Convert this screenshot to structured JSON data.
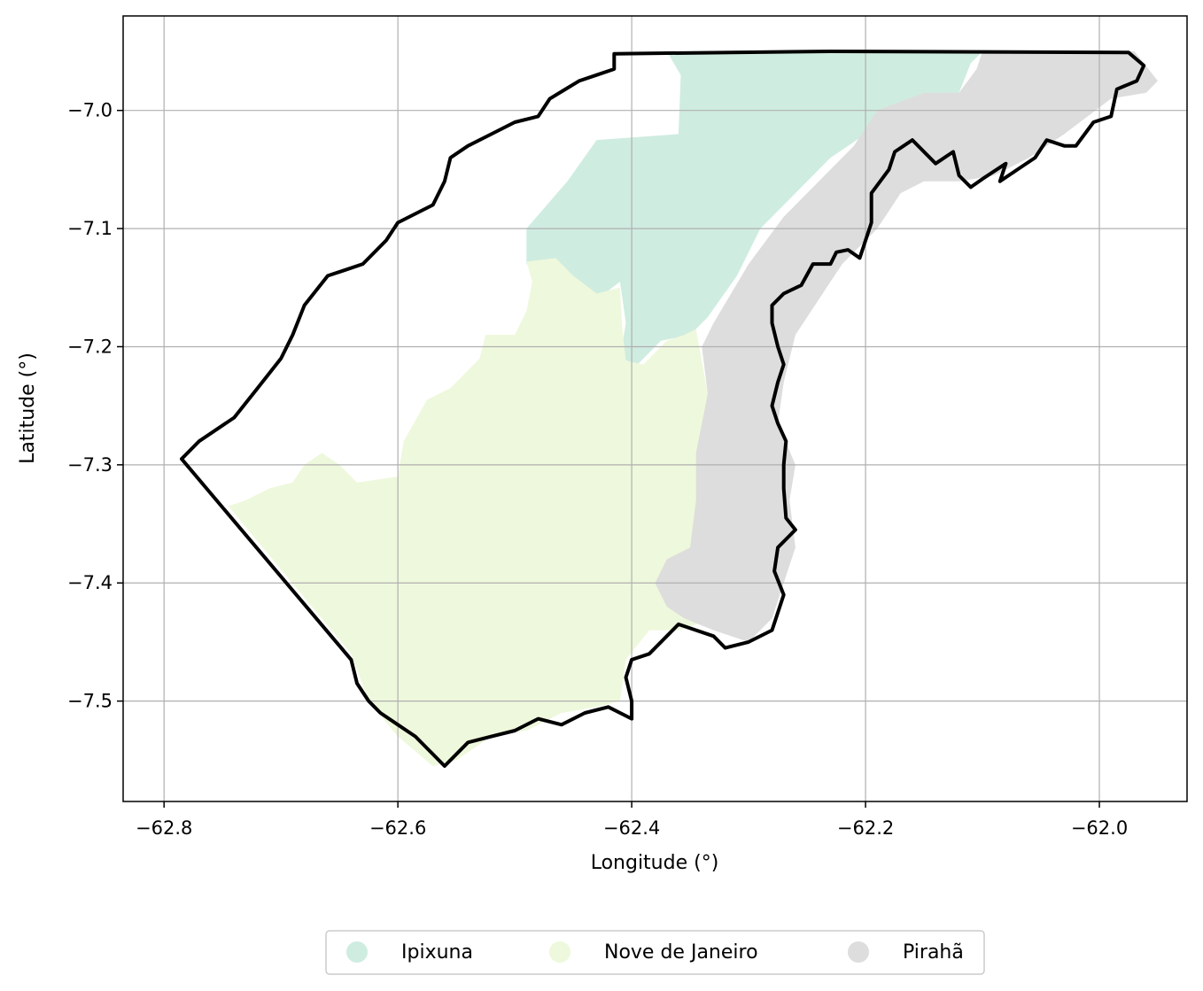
{
  "chart_data": {
    "type": "map",
    "title": "",
    "xlabel": "Longitude (°)",
    "ylabel": "Latitude (°)",
    "xlim": [
      -62.835,
      -61.925
    ],
    "ylim": [
      -7.585,
      -6.92
    ],
    "xticks": [
      -62.8,
      -62.6,
      -62.4,
      -62.2,
      -62.0
    ],
    "xtick_labels": [
      "−62.8",
      "−62.6",
      "−62.4",
      "−62.2",
      "−62.0"
    ],
    "yticks": [
      -7.0,
      -7.1,
      -7.2,
      -7.3,
      -7.4,
      -7.5
    ],
    "ytick_labels": [
      "−7.0",
      "−7.1",
      "−7.2",
      "−7.3",
      "−7.4",
      "−7.5"
    ],
    "grid": true,
    "legend_position": "bottom-center",
    "regions": [
      {
        "name": "Ipixuna",
        "color": "#cfece0",
        "polygon": [
          [
            -62.37,
            -6.95
          ],
          [
            -62.1,
            -6.95
          ],
          [
            -62.11,
            -6.96
          ],
          [
            -62.12,
            -6.985
          ],
          [
            -62.15,
            -6.99
          ],
          [
            -62.175,
            -7.0
          ],
          [
            -62.2,
            -7.02
          ],
          [
            -62.23,
            -7.04
          ],
          [
            -62.26,
            -7.07
          ],
          [
            -62.29,
            -7.1
          ],
          [
            -62.31,
            -7.14
          ],
          [
            -62.335,
            -7.175
          ],
          [
            -62.35,
            -7.19
          ],
          [
            -62.375,
            -7.195
          ],
          [
            -62.395,
            -7.215
          ],
          [
            -62.41,
            -7.21
          ],
          [
            -62.405,
            -7.18
          ],
          [
            -62.41,
            -7.145
          ],
          [
            -62.43,
            -7.16
          ],
          [
            -62.45,
            -7.155
          ],
          [
            -62.465,
            -7.145
          ],
          [
            -62.49,
            -7.13
          ],
          [
            -62.49,
            -7.1
          ],
          [
            -62.455,
            -7.06
          ],
          [
            -62.43,
            -7.025
          ],
          [
            -62.36,
            -7.02
          ],
          [
            -62.358,
            -6.97
          ]
        ]
      },
      {
        "name": "Nove de Janeiro",
        "color": "#eef8dc",
        "polygon": [
          [
            -62.49,
            -7.128
          ],
          [
            -62.465,
            -7.125
          ],
          [
            -62.45,
            -7.14
          ],
          [
            -62.43,
            -7.155
          ],
          [
            -62.41,
            -7.15
          ],
          [
            -62.408,
            -7.185
          ],
          [
            -62.405,
            -7.212
          ],
          [
            -62.39,
            -7.215
          ],
          [
            -62.37,
            -7.195
          ],
          [
            -62.355,
            -7.19
          ],
          [
            -62.345,
            -7.185
          ],
          [
            -62.335,
            -7.24
          ],
          [
            -62.315,
            -7.275
          ],
          [
            -62.315,
            -7.37
          ],
          [
            -62.325,
            -7.4
          ],
          [
            -62.33,
            -7.43
          ],
          [
            -62.36,
            -7.44
          ],
          [
            -62.385,
            -7.44
          ],
          [
            -62.405,
            -7.465
          ],
          [
            -62.41,
            -7.5
          ],
          [
            -62.43,
            -7.505
          ],
          [
            -62.46,
            -7.51
          ],
          [
            -62.49,
            -7.525
          ],
          [
            -62.52,
            -7.53
          ],
          [
            -62.55,
            -7.55
          ],
          [
            -62.57,
            -7.555
          ],
          [
            -62.6,
            -7.53
          ],
          [
            -62.625,
            -7.5
          ],
          [
            -62.64,
            -7.46
          ],
          [
            -62.745,
            -7.335
          ],
          [
            -62.73,
            -7.33
          ],
          [
            -62.71,
            -7.32
          ],
          [
            -62.69,
            -7.315
          ],
          [
            -62.68,
            -7.3
          ],
          [
            -62.665,
            -7.29
          ],
          [
            -62.65,
            -7.3
          ],
          [
            -62.635,
            -7.315
          ],
          [
            -62.6,
            -7.31
          ],
          [
            -62.595,
            -7.28
          ],
          [
            -62.575,
            -7.245
          ],
          [
            -62.555,
            -7.235
          ],
          [
            -62.53,
            -7.21
          ],
          [
            -62.525,
            -7.19
          ],
          [
            -62.5,
            -7.19
          ],
          [
            -62.49,
            -7.17
          ],
          [
            -62.485,
            -7.145
          ]
        ]
      },
      {
        "name": "Pirahã",
        "color": "#dddddd",
        "polygon": [
          [
            -62.1,
            -6.95
          ],
          [
            -61.97,
            -6.95
          ],
          [
            -61.95,
            -6.975
          ],
          [
            -61.96,
            -6.985
          ],
          [
            -61.99,
            -6.99
          ],
          [
            -62.03,
            -7.02
          ],
          [
            -62.06,
            -7.04
          ],
          [
            -62.09,
            -7.055
          ],
          [
            -62.12,
            -7.06
          ],
          [
            -62.15,
            -7.06
          ],
          [
            -62.17,
            -7.07
          ],
          [
            -62.19,
            -7.1
          ],
          [
            -62.22,
            -7.13
          ],
          [
            -62.24,
            -7.16
          ],
          [
            -62.26,
            -7.19
          ],
          [
            -62.27,
            -7.23
          ],
          [
            -62.275,
            -7.265
          ],
          [
            -62.26,
            -7.3
          ],
          [
            -62.265,
            -7.33
          ],
          [
            -62.26,
            -7.37
          ],
          [
            -62.27,
            -7.4
          ],
          [
            -62.28,
            -7.43
          ],
          [
            -62.3,
            -7.45
          ],
          [
            -62.33,
            -7.44
          ],
          [
            -62.355,
            -7.43
          ],
          [
            -62.37,
            -7.42
          ],
          [
            -62.38,
            -7.4
          ],
          [
            -62.37,
            -7.38
          ],
          [
            -62.35,
            -7.37
          ],
          [
            -62.345,
            -7.33
          ],
          [
            -62.345,
            -7.29
          ],
          [
            -62.335,
            -7.24
          ],
          [
            -62.34,
            -7.2
          ],
          [
            -62.33,
            -7.18
          ],
          [
            -62.3,
            -7.13
          ],
          [
            -62.27,
            -7.09
          ],
          [
            -62.24,
            -7.06
          ],
          [
            -62.21,
            -7.03
          ],
          [
            -62.19,
            -7.0
          ],
          [
            -62.15,
            -6.985
          ],
          [
            -62.12,
            -6.985
          ],
          [
            -62.105,
            -6.965
          ]
        ]
      }
    ],
    "boundary": {
      "color": "#000000",
      "outline": [
        [
          -62.415,
          -6.952
        ],
        [
          -62.23,
          -6.95
        ],
        [
          -61.975,
          -6.951
        ],
        [
          -61.962,
          -6.962
        ],
        [
          -61.968,
          -6.975
        ],
        [
          -61.985,
          -6.982
        ],
        [
          -61.99,
          -7.005
        ],
        [
          -62.005,
          -7.01
        ],
        [
          -62.02,
          -7.03
        ],
        [
          -62.03,
          -7.03
        ],
        [
          -62.045,
          -7.025
        ],
        [
          -62.055,
          -7.04
        ],
        [
          -62.07,
          -7.05
        ],
        [
          -62.085,
          -7.06
        ],
        [
          -62.08,
          -7.045
        ],
        [
          -62.1,
          -7.058
        ],
        [
          -62.11,
          -7.065
        ],
        [
          -62.12,
          -7.055
        ],
        [
          -62.125,
          -7.035
        ],
        [
          -62.14,
          -7.045
        ],
        [
          -62.16,
          -7.025
        ],
        [
          -62.175,
          -7.035
        ],
        [
          -62.18,
          -7.05
        ],
        [
          -62.195,
          -7.07
        ],
        [
          -62.195,
          -7.095
        ],
        [
          -62.2,
          -7.11
        ],
        [
          -62.205,
          -7.125
        ],
        [
          -62.215,
          -7.118
        ],
        [
          -62.225,
          -7.12
        ],
        [
          -62.23,
          -7.13
        ],
        [
          -62.245,
          -7.13
        ],
        [
          -62.255,
          -7.148
        ],
        [
          -62.27,
          -7.155
        ],
        [
          -62.28,
          -7.165
        ],
        [
          -62.28,
          -7.18
        ],
        [
          -62.275,
          -7.2
        ],
        [
          -62.27,
          -7.215
        ],
        [
          -62.275,
          -7.23
        ],
        [
          -62.28,
          -7.25
        ],
        [
          -62.275,
          -7.265
        ],
        [
          -62.268,
          -7.28
        ],
        [
          -62.27,
          -7.3
        ],
        [
          -62.27,
          -7.32
        ],
        [
          -62.268,
          -7.345
        ],
        [
          -62.26,
          -7.355
        ],
        [
          -62.275,
          -7.37
        ],
        [
          -62.278,
          -7.39
        ],
        [
          -62.27,
          -7.41
        ],
        [
          -62.275,
          -7.425
        ],
        [
          -62.28,
          -7.44
        ],
        [
          -62.3,
          -7.45
        ],
        [
          -62.32,
          -7.455
        ],
        [
          -62.33,
          -7.445
        ],
        [
          -62.345,
          -7.44
        ],
        [
          -62.36,
          -7.435
        ],
        [
          -62.37,
          -7.445
        ],
        [
          -62.385,
          -7.46
        ],
        [
          -62.4,
          -7.465
        ],
        [
          -62.405,
          -7.48
        ],
        [
          -62.4,
          -7.5
        ],
        [
          -62.4,
          -7.515
        ],
        [
          -62.42,
          -7.505
        ],
        [
          -62.44,
          -7.51
        ],
        [
          -62.46,
          -7.52
        ],
        [
          -62.48,
          -7.515
        ],
        [
          -62.5,
          -7.525
        ],
        [
          -62.52,
          -7.53
        ],
        [
          -62.54,
          -7.535
        ],
        [
          -62.555,
          -7.55
        ],
        [
          -62.56,
          -7.555
        ],
        [
          -62.57,
          -7.545
        ],
        [
          -62.585,
          -7.53
        ],
        [
          -62.6,
          -7.52
        ],
        [
          -62.615,
          -7.51
        ],
        [
          -62.625,
          -7.5
        ],
        [
          -62.635,
          -7.485
        ],
        [
          -62.64,
          -7.465
        ],
        [
          -62.785,
          -7.295
        ],
        [
          -62.77,
          -7.28
        ],
        [
          -62.74,
          -7.26
        ],
        [
          -62.72,
          -7.235
        ],
        [
          -62.7,
          -7.21
        ],
        [
          -62.69,
          -7.19
        ],
        [
          -62.68,
          -7.165
        ],
        [
          -62.66,
          -7.14
        ],
        [
          -62.645,
          -7.135
        ],
        [
          -62.63,
          -7.13
        ],
        [
          -62.61,
          -7.11
        ],
        [
          -62.6,
          -7.095
        ],
        [
          -62.57,
          -7.08
        ],
        [
          -62.56,
          -7.06
        ],
        [
          -62.555,
          -7.04
        ],
        [
          -62.54,
          -7.03
        ],
        [
          -62.52,
          -7.02
        ],
        [
          -62.5,
          -7.01
        ],
        [
          -62.48,
          -7.005
        ],
        [
          -62.47,
          -6.99
        ],
        [
          -62.445,
          -6.975
        ],
        [
          -62.43,
          -6.97
        ],
        [
          -62.415,
          -6.965
        ],
        [
          -62.415,
          -6.952
        ]
      ]
    },
    "legend": [
      "Ipixuna",
      "Nove de Janeiro",
      "Pirahã"
    ]
  }
}
